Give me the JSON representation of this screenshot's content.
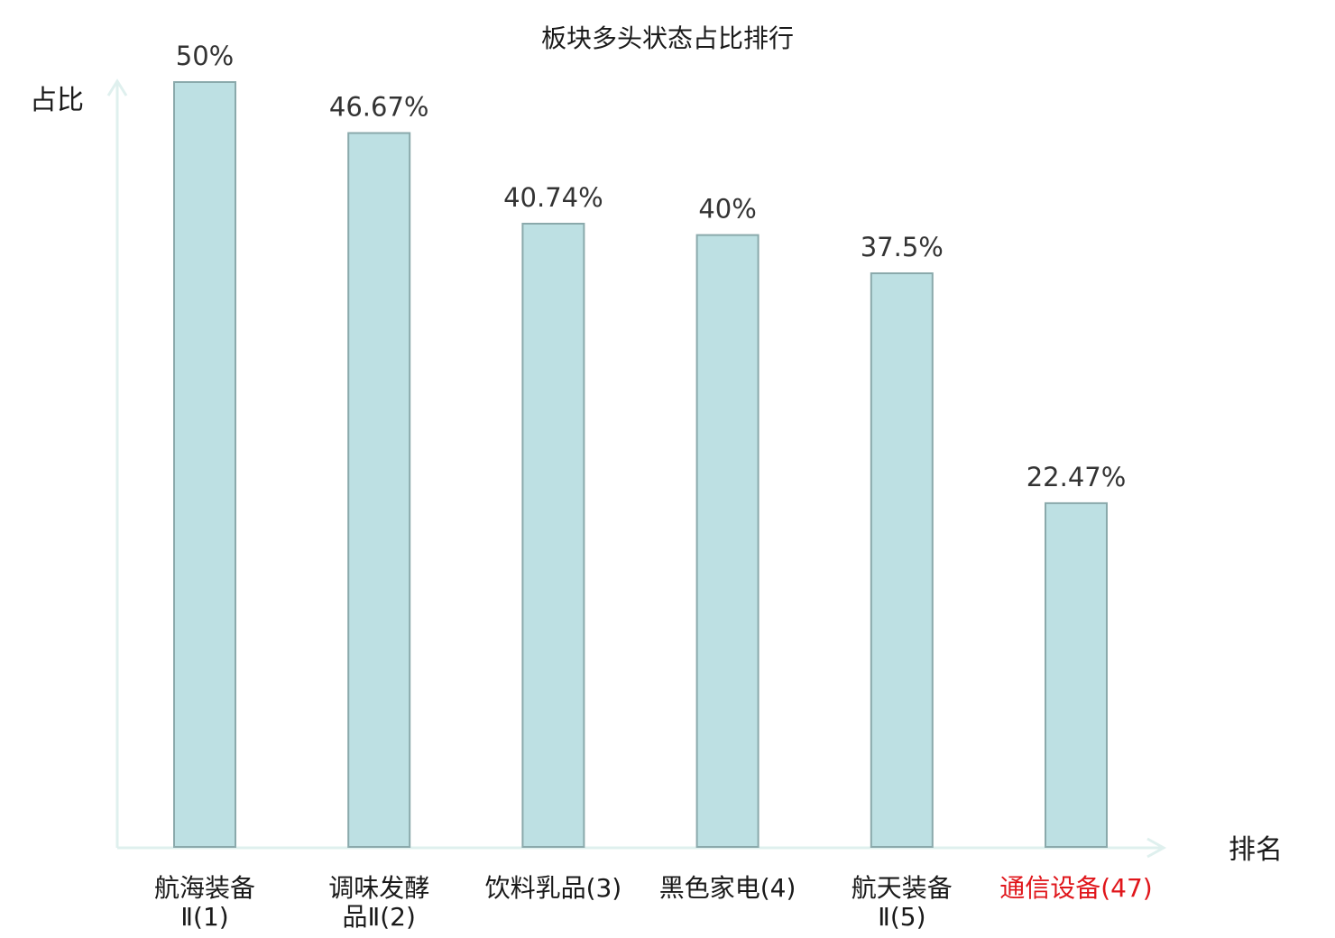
{
  "chart_data": {
    "type": "bar",
    "title": "板块多头状态占比排行",
    "ylabel": "占比",
    "xlabel": "排名",
    "ylim": [
      0,
      50
    ],
    "categories": [
      {
        "lines": [
          "航海装备",
          "Ⅱ(1)"
        ],
        "highlight": false
      },
      {
        "lines": [
          "调味发酵",
          "品Ⅱ(2)"
        ],
        "highlight": false
      },
      {
        "lines": [
          "饮料乳品(3)"
        ],
        "highlight": false
      },
      {
        "lines": [
          "黑色家电(4)"
        ],
        "highlight": false
      },
      {
        "lines": [
          "航天装备",
          "Ⅱ(5)"
        ],
        "highlight": false
      },
      {
        "lines": [
          "通信设备(47)"
        ],
        "highlight": true
      }
    ],
    "values": [
      50,
      46.67,
      40.74,
      40,
      37.5,
      22.47
    ],
    "value_labels": [
      "50%",
      "46.67%",
      "40.74%",
      "40%",
      "37.5%",
      "22.47%"
    ],
    "grid": false,
    "legend": "none"
  },
  "colors": {
    "bar_fill": "#bde0e3",
    "bar_stroke": "#8aa9ab",
    "axis": "#dff0ee",
    "text": "#1a1a1a",
    "value_text": "#333333",
    "highlight": "#e0161b"
  }
}
